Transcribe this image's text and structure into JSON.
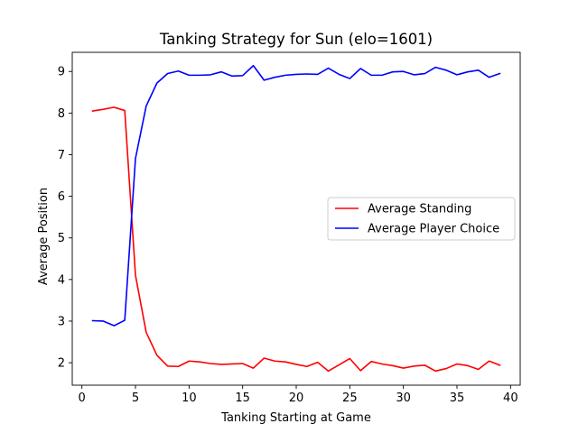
{
  "chart_data": {
    "type": "line",
    "title": "Tanking Strategy for Sun (elo=1601)",
    "xlabel": "Tanking Starting at Game",
    "ylabel": "Average Position",
    "xlim": [
      -0.9,
      40.9
    ],
    "ylim": [
      1.46,
      9.46
    ],
    "xticks": [
      0,
      5,
      10,
      15,
      20,
      25,
      30,
      35,
      40
    ],
    "yticks": [
      2,
      3,
      4,
      5,
      6,
      7,
      8,
      9
    ],
    "grid": false,
    "legend_position": "center-right",
    "x": [
      1,
      2,
      3,
      4,
      5,
      6,
      7,
      8,
      9,
      10,
      11,
      12,
      13,
      14,
      15,
      16,
      17,
      18,
      19,
      20,
      21,
      22,
      23,
      24,
      25,
      26,
      27,
      28,
      29,
      30,
      31,
      32,
      33,
      34,
      35,
      36,
      37,
      38,
      39
    ],
    "series": [
      {
        "name": "Average Standing",
        "color": "#ff0000",
        "values": [
          8.05,
          8.09,
          8.14,
          8.06,
          4.1,
          2.73,
          2.18,
          1.92,
          1.91,
          2.04,
          2.02,
          1.98,
          1.96,
          1.97,
          1.98,
          1.87,
          2.11,
          2.04,
          2.02,
          1.96,
          1.91,
          2.01,
          1.8,
          1.95,
          2.1,
          1.81,
          2.03,
          1.97,
          1.93,
          1.87,
          1.92,
          1.94,
          1.8,
          1.86,
          1.97,
          1.93,
          1.84,
          2.04,
          1.94
        ]
      },
      {
        "name": "Average Player Choice",
        "color": "#0000ff",
        "values": [
          3.01,
          3.0,
          2.89,
          3.02,
          6.91,
          8.17,
          8.72,
          8.95,
          9.01,
          8.91,
          8.91,
          8.92,
          8.99,
          8.89,
          8.9,
          9.14,
          8.79,
          8.86,
          8.91,
          8.93,
          8.94,
          8.93,
          9.08,
          8.93,
          8.83,
          9.07,
          8.91,
          8.91,
          8.99,
          9.0,
          8.92,
          8.95,
          9.1,
          9.03,
          8.92,
          8.99,
          9.03,
          8.86,
          8.95
        ]
      }
    ]
  }
}
